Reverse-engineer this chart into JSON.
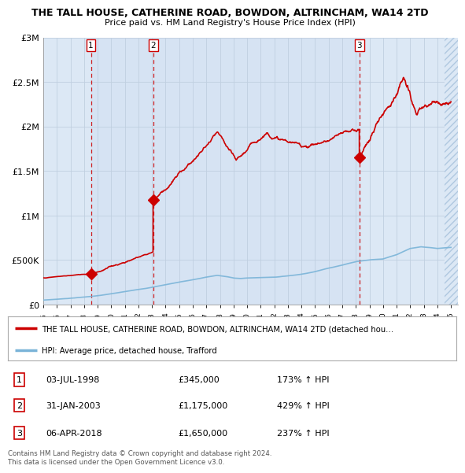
{
  "title": "THE TALL HOUSE, CATHERINE ROAD, BOWDON, ALTRINCHAM, WA14 2TD",
  "subtitle": "Price paid vs. HM Land Registry's House Price Index (HPI)",
  "sale_dates_decimal": [
    1998.503,
    2003.082,
    2018.256
  ],
  "sale_prices": [
    345000,
    1175000,
    1650000
  ],
  "sale_labels": [
    "1",
    "2",
    "3"
  ],
  "sale_pct": [
    "173% ↑ HPI",
    "429% ↑ HPI",
    "237% ↑ HPI"
  ],
  "sale_date_labels": [
    "03-JUL-1998",
    "31-JAN-2003",
    "06-APR-2018"
  ],
  "sale_price_labels": [
    "£345,000",
    "£1,175,000",
    "£1,650,000"
  ],
  "hpi_color": "#7ab4d8",
  "price_color": "#cc0000",
  "vline_color": "#cc0000",
  "legend_label_price": "THE TALL HOUSE, CATHERINE ROAD, BOWDON, ALTRINCHAM, WA14 2TD (detached hou…",
  "legend_label_hpi": "HPI: Average price, detached house, Trafford",
  "footer": "Contains HM Land Registry data © Crown copyright and database right 2024.\nThis data is licensed under the Open Government Licence v3.0.",
  "ylim": [
    0,
    3000000
  ],
  "yticks": [
    0,
    500000,
    1000000,
    1500000,
    2000000,
    2500000,
    3000000
  ],
  "ytick_labels": [
    "£0",
    "£500K",
    "£1M",
    "£1.5M",
    "£2M",
    "£2.5M",
    "£3M"
  ],
  "bg_color": "#dce8f5",
  "plot_bg_color": "#ffffff",
  "grid_color": "#c0cfe0",
  "hatch_color": "#c8d8e8"
}
